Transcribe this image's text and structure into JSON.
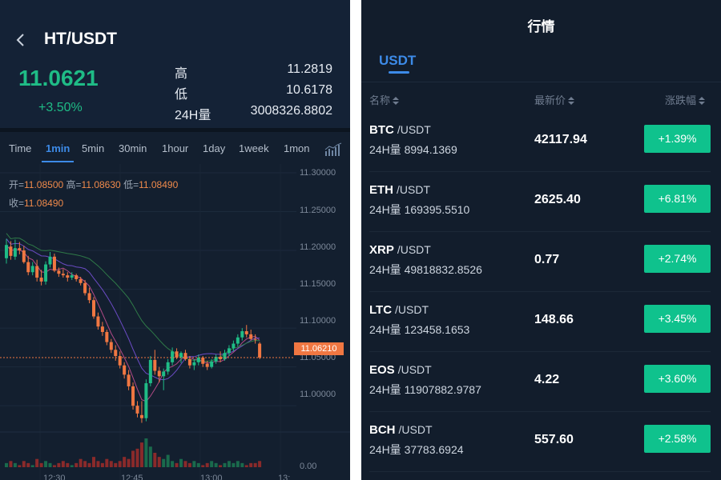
{
  "left": {
    "pair": "HT/USDT",
    "last_price": "11.0621",
    "change": "+3.50%",
    "stats": [
      {
        "label": "高",
        "value": "11.2819"
      },
      {
        "label": "低",
        "value": "10.6178"
      },
      {
        "label": "24H量",
        "value": "3008326.8802"
      }
    ],
    "intervals": [
      "Time",
      "1min",
      "5min",
      "30min",
      "1hour",
      "1day",
      "1week",
      "1mon"
    ],
    "active_interval": "1min",
    "ohlc": {
      "open_label": "开=",
      "open": "11.08500",
      "high_label": "高=",
      "high": "11.08630",
      "low_label": "低=",
      "low": "11.08490",
      "close_label": "收=",
      "close": "11.08490"
    },
    "y_ticks": [
      "11.30000",
      "11.25000",
      "11.20000",
      "11.15000",
      "11.10000",
      "11.05000",
      "11.00000",
      "0.00"
    ],
    "price_tag": "11.06210",
    "x_ticks": [
      "12:30",
      "12:45",
      "13:00",
      "13:"
    ]
  },
  "chart_data": {
    "type": "candlestick",
    "ylim": [
      10.96,
      11.3
    ],
    "candles": [
      [
        11.19,
        11.215,
        11.183,
        11.207
      ],
      [
        11.205,
        11.212,
        11.188,
        11.193
      ],
      [
        11.192,
        11.214,
        11.188,
        11.203
      ],
      [
        11.203,
        11.211,
        11.195,
        11.2
      ],
      [
        11.2,
        11.206,
        11.183,
        11.185
      ],
      [
        11.185,
        11.193,
        11.168,
        11.172
      ],
      [
        11.172,
        11.185,
        11.168,
        11.18
      ],
      [
        11.18,
        11.188,
        11.16,
        11.165
      ],
      [
        11.165,
        11.175,
        11.155,
        11.16
      ],
      [
        11.16,
        11.186,
        11.156,
        11.182
      ],
      [
        11.182,
        11.198,
        11.178,
        11.192
      ],
      [
        11.192,
        11.196,
        11.172,
        11.174
      ],
      [
        11.174,
        11.178,
        11.166,
        11.17
      ],
      [
        11.17,
        11.176,
        11.165,
        11.168
      ],
      [
        11.168,
        11.172,
        11.16,
        11.165
      ],
      [
        11.165,
        11.172,
        11.162,
        11.168
      ],
      [
        11.168,
        11.17,
        11.16,
        11.163
      ],
      [
        11.163,
        11.166,
        11.155,
        11.158
      ],
      [
        11.158,
        11.162,
        11.142,
        11.145
      ],
      [
        11.145,
        11.152,
        11.132,
        11.136
      ],
      [
        11.136,
        11.14,
        11.112,
        11.115
      ],
      [
        11.115,
        11.12,
        11.098,
        11.102
      ],
      [
        11.102,
        11.108,
        11.09,
        11.095
      ],
      [
        11.095,
        11.098,
        11.078,
        11.082
      ],
      [
        11.082,
        11.086,
        11.068,
        11.072
      ],
      [
        11.072,
        11.078,
        11.058,
        11.064
      ],
      [
        11.064,
        11.07,
        11.048,
        11.052
      ],
      [
        11.052,
        11.056,
        11.035,
        11.04
      ],
      [
        11.04,
        11.046,
        11.02,
        11.025
      ],
      [
        11.025,
        11.03,
        10.995,
        11.0
      ],
      [
        11.0,
        11.006,
        10.985,
        10.99
      ],
      [
        10.988,
        11.006,
        10.978,
        10.984
      ],
      [
        10.984,
        11.034,
        10.98,
        11.029
      ],
      [
        11.029,
        11.064,
        11.025,
        11.059
      ],
      [
        11.059,
        11.072,
        11.04,
        11.045
      ],
      [
        11.045,
        11.05,
        11.03,
        11.038
      ],
      [
        11.038,
        11.048,
        11.02,
        11.044
      ],
      [
        11.044,
        11.06,
        11.04,
        11.056
      ],
      [
        11.056,
        11.075,
        11.052,
        11.07
      ],
      [
        11.07,
        11.074,
        11.06,
        11.062
      ],
      [
        11.062,
        11.07,
        11.055,
        11.068
      ],
      [
        11.068,
        11.072,
        11.058,
        11.06
      ],
      [
        11.06,
        11.064,
        11.048,
        11.052
      ],
      [
        11.052,
        11.06,
        11.046,
        11.056
      ],
      [
        11.056,
        11.066,
        11.052,
        11.062
      ],
      [
        11.062,
        11.064,
        11.05,
        11.054
      ],
      [
        11.054,
        11.058,
        11.046,
        11.05
      ],
      [
        11.05,
        11.06,
        11.048,
        11.057
      ],
      [
        11.057,
        11.066,
        11.054,
        11.063
      ],
      [
        11.063,
        11.07,
        11.056,
        11.06
      ],
      [
        11.06,
        11.072,
        11.058,
        11.068
      ],
      [
        11.068,
        11.078,
        11.064,
        11.074
      ],
      [
        11.074,
        11.084,
        11.07,
        11.08
      ],
      [
        11.08,
        11.092,
        11.076,
        11.088
      ],
      [
        11.088,
        11.1,
        11.084,
        11.096
      ],
      [
        11.096,
        11.104,
        11.088,
        11.092
      ],
      [
        11.092,
        11.098,
        11.084,
        11.086
      ],
      [
        11.086,
        11.092,
        11.08,
        11.085
      ],
      [
        11.08,
        11.082,
        11.06,
        11.062
      ]
    ],
    "volumes": [
      2,
      3,
      2,
      1,
      3,
      2,
      1,
      4,
      2,
      3,
      2,
      1,
      2,
      3,
      2,
      1,
      2,
      4,
      3,
      2,
      5,
      3,
      2,
      4,
      3,
      2,
      3,
      5,
      4,
      8,
      9,
      12,
      14,
      10,
      7,
      5,
      4,
      6,
      3,
      2,
      4,
      3,
      2,
      3,
      2,
      1,
      2,
      3,
      2,
      1,
      2,
      3,
      2,
      3,
      2,
      1,
      2,
      2,
      3
    ]
  },
  "right": {
    "title": "行情",
    "quote_tab": "USDT",
    "columns": [
      "名称",
      "最新价",
      "涨跌幅"
    ],
    "rows": [
      {
        "base": "BTC",
        "quote": "/USDT",
        "volume": "24H量 8994.1369",
        "price": "42117.94",
        "change": "+1.39%"
      },
      {
        "base": "ETH",
        "quote": "/USDT",
        "volume": "24H量 169395.5510",
        "price": "2625.40",
        "change": "+6.81%"
      },
      {
        "base": "XRP",
        "quote": "/USDT",
        "volume": "24H量 49818832.8526",
        "price": "0.77",
        "change": "+2.74%"
      },
      {
        "base": "LTC",
        "quote": "/USDT",
        "volume": "24H量 123458.1653",
        "price": "148.66",
        "change": "+3.45%"
      },
      {
        "base": "EOS",
        "quote": "/USDT",
        "volume": "24H量 11907882.9787",
        "price": "4.22",
        "change": "+3.60%"
      },
      {
        "base": "BCH",
        "quote": "/USDT",
        "volume": "24H量 37783.6924",
        "price": "557.60",
        "change": "+2.58%"
      }
    ],
    "colors": {
      "up": "#0fc28d",
      "accent": "#3d8be8"
    }
  }
}
